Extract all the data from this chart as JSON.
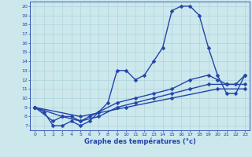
{
  "bg_color": "#cce8ed",
  "line_color": "#2244aa",
  "marker": "D",
  "markersize": 2.5,
  "linewidth": 1.0,
  "xlabel": "Graphe des températures (°c)",
  "xlim": [
    -0.5,
    23.5
  ],
  "ylim": [
    6.5,
    20.5
  ],
  "xticks": [
    0,
    1,
    2,
    3,
    4,
    5,
    6,
    7,
    8,
    9,
    10,
    11,
    12,
    13,
    14,
    15,
    16,
    17,
    18,
    19,
    20,
    21,
    22,
    23
  ],
  "yticks": [
    7,
    8,
    9,
    10,
    11,
    12,
    13,
    14,
    15,
    16,
    17,
    18,
    19,
    20
  ],
  "grid_color": "#aed4d8",
  "series1": [
    [
      0,
      9
    ],
    [
      1,
      8.5
    ],
    [
      2,
      7
    ],
    [
      3,
      7
    ],
    [
      4,
      7.5
    ],
    [
      5,
      7
    ],
    [
      6,
      7.5
    ],
    [
      7,
      8.5
    ],
    [
      8,
      9.5
    ],
    [
      9,
      13
    ],
    [
      10,
      13
    ],
    [
      11,
      12
    ],
    [
      12,
      12.5
    ],
    [
      13,
      14
    ],
    [
      14,
      15.5
    ],
    [
      15,
      19.5
    ],
    [
      16,
      20
    ],
    [
      17,
      20
    ],
    [
      18,
      19
    ],
    [
      19,
      15.5
    ],
    [
      20,
      12.5
    ],
    [
      21,
      10.5
    ],
    [
      22,
      10.5
    ],
    [
      23,
      12.5
    ]
  ],
  "series2": [
    [
      0,
      9
    ],
    [
      2,
      7.5
    ],
    [
      3,
      8
    ],
    [
      4,
      8
    ],
    [
      5,
      7.5
    ],
    [
      6,
      8
    ],
    [
      7,
      8.5
    ],
    [
      9,
      9.5
    ],
    [
      11,
      10
    ],
    [
      13,
      10.5
    ],
    [
      15,
      11
    ],
    [
      17,
      12
    ],
    [
      19,
      12.5
    ],
    [
      20,
      12
    ],
    [
      21,
      11.5
    ],
    [
      22,
      11.5
    ],
    [
      23,
      12.5
    ]
  ],
  "series3": [
    [
      0,
      9
    ],
    [
      3,
      8
    ],
    [
      5,
      7.5
    ],
    [
      7,
      8
    ],
    [
      9,
      9
    ],
    [
      11,
      9.5
    ],
    [
      13,
      10
    ],
    [
      15,
      10.5
    ],
    [
      17,
      11
    ],
    [
      19,
      11.5
    ],
    [
      21,
      11.5
    ],
    [
      23,
      11.5
    ]
  ],
  "series4": [
    [
      0,
      9
    ],
    [
      5,
      8
    ],
    [
      10,
      9
    ],
    [
      15,
      10
    ],
    [
      20,
      11
    ],
    [
      23,
      11
    ]
  ]
}
